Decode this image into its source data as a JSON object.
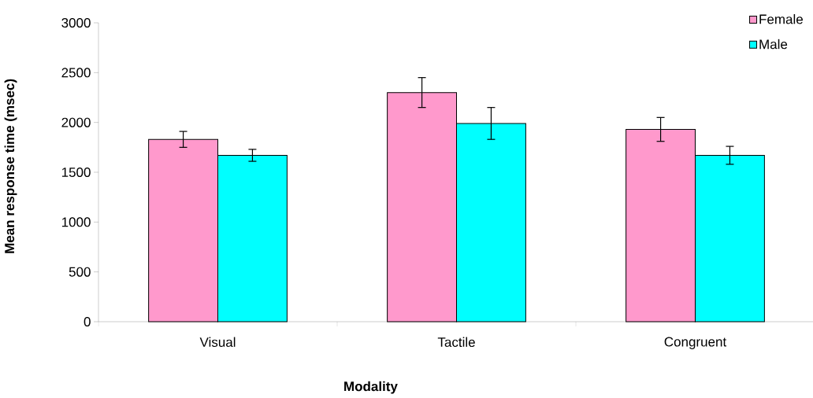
{
  "chart_data": {
    "type": "bar",
    "xlabel": "Modality",
    "ylabel": "Mean response time (msec)",
    "categories": [
      "Visual",
      "Tactile",
      "Congruent"
    ],
    "series": [
      {
        "name": "Female",
        "color": "#ff99cc",
        "values": [
          1830,
          2300,
          1930
        ],
        "errors": [
          80,
          150,
          120
        ]
      },
      {
        "name": "Male",
        "color": "#00ffff",
        "values": [
          1670,
          1990,
          1670
        ],
        "errors": [
          60,
          160,
          90
        ]
      }
    ],
    "ylim": [
      0,
      3000
    ],
    "yticks": [
      0,
      500,
      1000,
      1500,
      2000,
      2500,
      3000
    ],
    "legend": "top right",
    "grid": false
  }
}
